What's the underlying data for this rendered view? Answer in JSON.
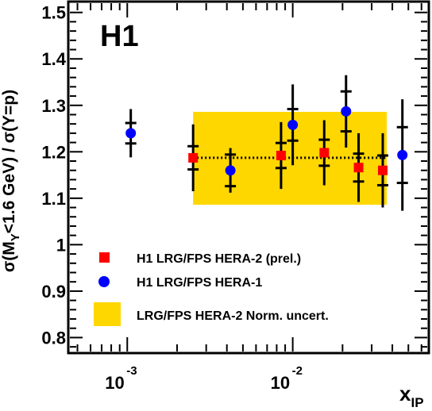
{
  "chart_data": {
    "type": "scatter",
    "label": "H1",
    "xlabel": "x",
    "xlabel_sub": "IP",
    "ylabel": {
      "pre": "σ(M",
      "sub": "Y",
      "post": "<1.6 GeV) / σ(Y=p)"
    },
    "x_scale": "log",
    "xlim": [
      0.00045,
      0.065
    ],
    "ylim": [
      0.77,
      1.52
    ],
    "y_ticks": [
      "0.8",
      "0.9",
      "1",
      "1.1",
      "1.2",
      "1.3",
      "1.4",
      "1.5"
    ],
    "y_tick_values": [
      0.8,
      0.9,
      1.0,
      1.1,
      1.2,
      1.3,
      1.4,
      1.5
    ],
    "x_tick_labels": [
      {
        "base": "10",
        "exp": "-3",
        "value": 0.001
      },
      {
        "base": "10",
        "exp": "-2",
        "value": 0.01
      }
    ],
    "band": {
      "name": "LRG/FPS HERA-2 Norm. uncert.",
      "color": "#ffd700",
      "x": [
        0.0025,
        0.037
      ],
      "y": [
        1.086,
        1.286
      ],
      "dotted_line_y": 1.187
    },
    "series": [
      {
        "name": "H1 LRG/FPS HERA-2 (prel.)",
        "marker": "square",
        "color": "#ff0000",
        "points": [
          {
            "x": 0.0025,
            "y": 1.187,
            "stat": 0.025,
            "tot": 0.072
          },
          {
            "x": 0.0085,
            "y": 1.192,
            "stat": 0.027,
            "tot": 0.072
          },
          {
            "x": 0.0155,
            "y": 1.198,
            "stat": 0.028,
            "tot": 0.07
          },
          {
            "x": 0.025,
            "y": 1.166,
            "stat": 0.03,
            "tot": 0.074
          },
          {
            "x": 0.035,
            "y": 1.16,
            "stat": 0.032,
            "tot": 0.08
          }
        ]
      },
      {
        "name": "H1 LRG/FPS HERA-1",
        "marker": "circle",
        "color": "#0000ff",
        "points": [
          {
            "x": 0.00105,
            "y": 1.24,
            "stat": 0.022,
            "tot": 0.052
          },
          {
            "x": 0.0042,
            "y": 1.16,
            "stat": 0.034,
            "tot": 0.048
          },
          {
            "x": 0.01,
            "y": 1.258,
            "stat": 0.034,
            "tot": 0.087
          },
          {
            "x": 0.021,
            "y": 1.287,
            "stat": 0.043,
            "tot": 0.078
          },
          {
            "x": 0.046,
            "y": 1.193,
            "stat": 0.06,
            "tot": 0.12
          }
        ]
      }
    ],
    "legend": [
      {
        "label": "H1 LRG/FPS HERA-2 (prel.)",
        "marker": "square",
        "color": "#ff0000"
      },
      {
        "label": "H1 LRG/FPS HERA-1",
        "marker": "circle",
        "color": "#0000ff"
      },
      {
        "label": "LRG/FPS HERA-2 Norm. uncert.",
        "marker": "band",
        "color": "#ffd700"
      }
    ],
    "legend_position": "bottom-left",
    "grid": false
  }
}
